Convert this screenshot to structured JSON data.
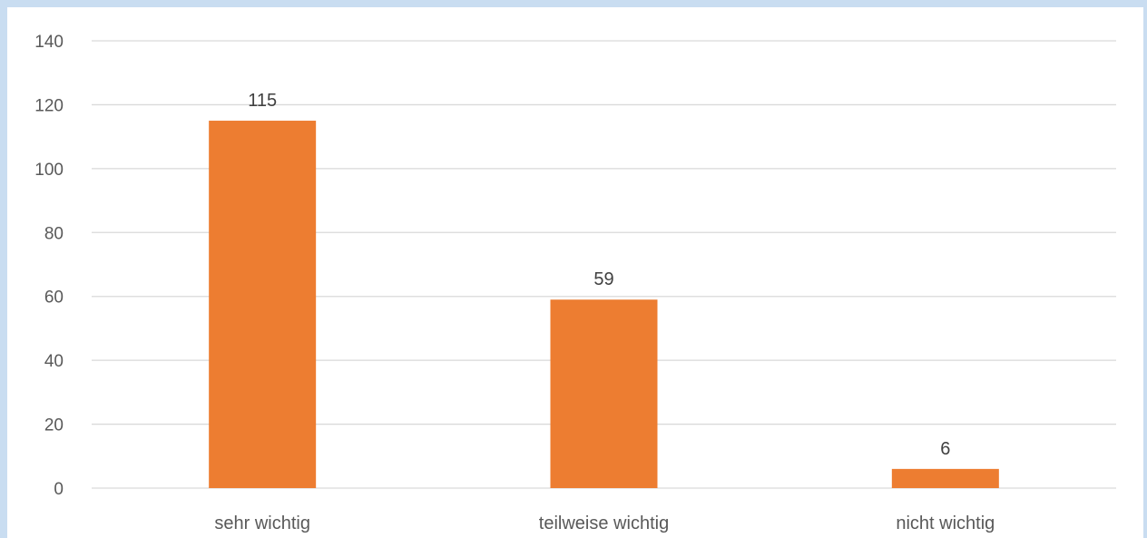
{
  "chart_data": {
    "type": "bar",
    "categories": [
      "sehr wichtig",
      "teilweise wichtig",
      "nicht wichtig"
    ],
    "values": [
      115,
      59,
      6
    ],
    "data_labels": [
      "115",
      "59",
      "6"
    ],
    "title": "",
    "xlabel": "",
    "ylabel": "",
    "ylim": [
      0,
      140
    ],
    "yticks": [
      0,
      20,
      40,
      60,
      80,
      100,
      120,
      140
    ],
    "ytick_labels": [
      "0",
      "20",
      "40",
      "60",
      "80",
      "100",
      "120",
      "140"
    ],
    "grid": true,
    "legend": "none",
    "bar_color": "#ed7d31"
  }
}
